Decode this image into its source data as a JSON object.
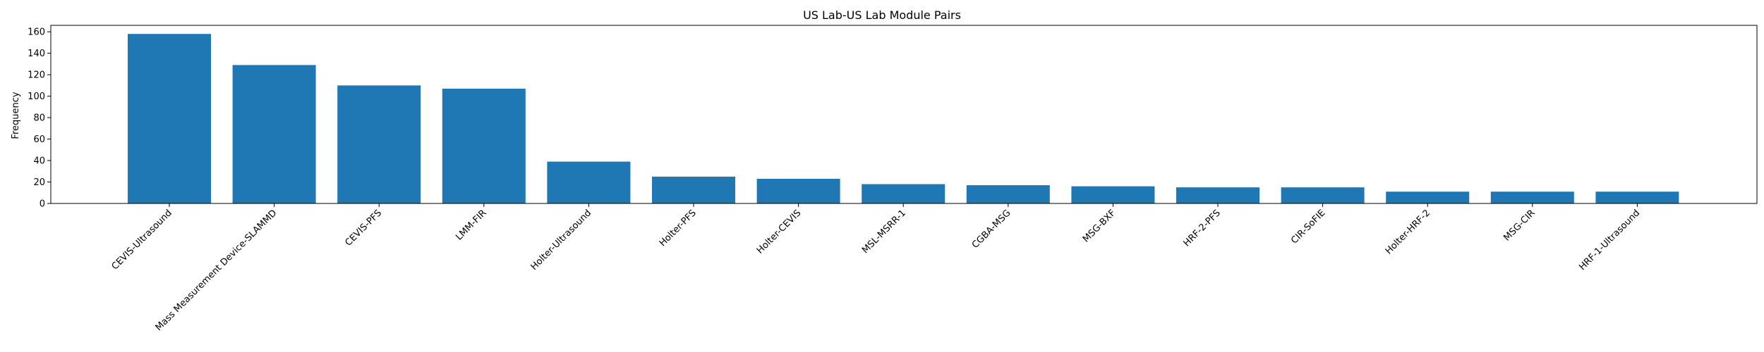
{
  "chart_data": {
    "type": "bar",
    "title": "US Lab-US Lab Module Pairs",
    "xlabel": "",
    "ylabel": "Frequency",
    "categories": [
      "CEVIS-Ultrasound",
      "Mass Measurement Device-SLAMMD",
      "CEVIS-PFS",
      "LMM-FIR",
      "Holter-Ultrasound",
      "Holter-PFS",
      "Holter-CEVIS",
      "MSL-MSRR-1",
      "CGBA-MSG",
      "MSG-BXF",
      "HRF-2-PFS",
      "CIR-SoFIE",
      "Holter-HRF-2",
      "MSG-CIR",
      "HRF-1-Ultrasound"
    ],
    "values": [
      158,
      129,
      110,
      107,
      39,
      25,
      23,
      18,
      17,
      16,
      15,
      15,
      11,
      11,
      11
    ],
    "ylim": [
      0,
      166
    ],
    "yticks": [
      0,
      20,
      40,
      60,
      80,
      100,
      120,
      140,
      160
    ],
    "bar_color": "#1f77b4",
    "grid": false,
    "legend": "none"
  }
}
